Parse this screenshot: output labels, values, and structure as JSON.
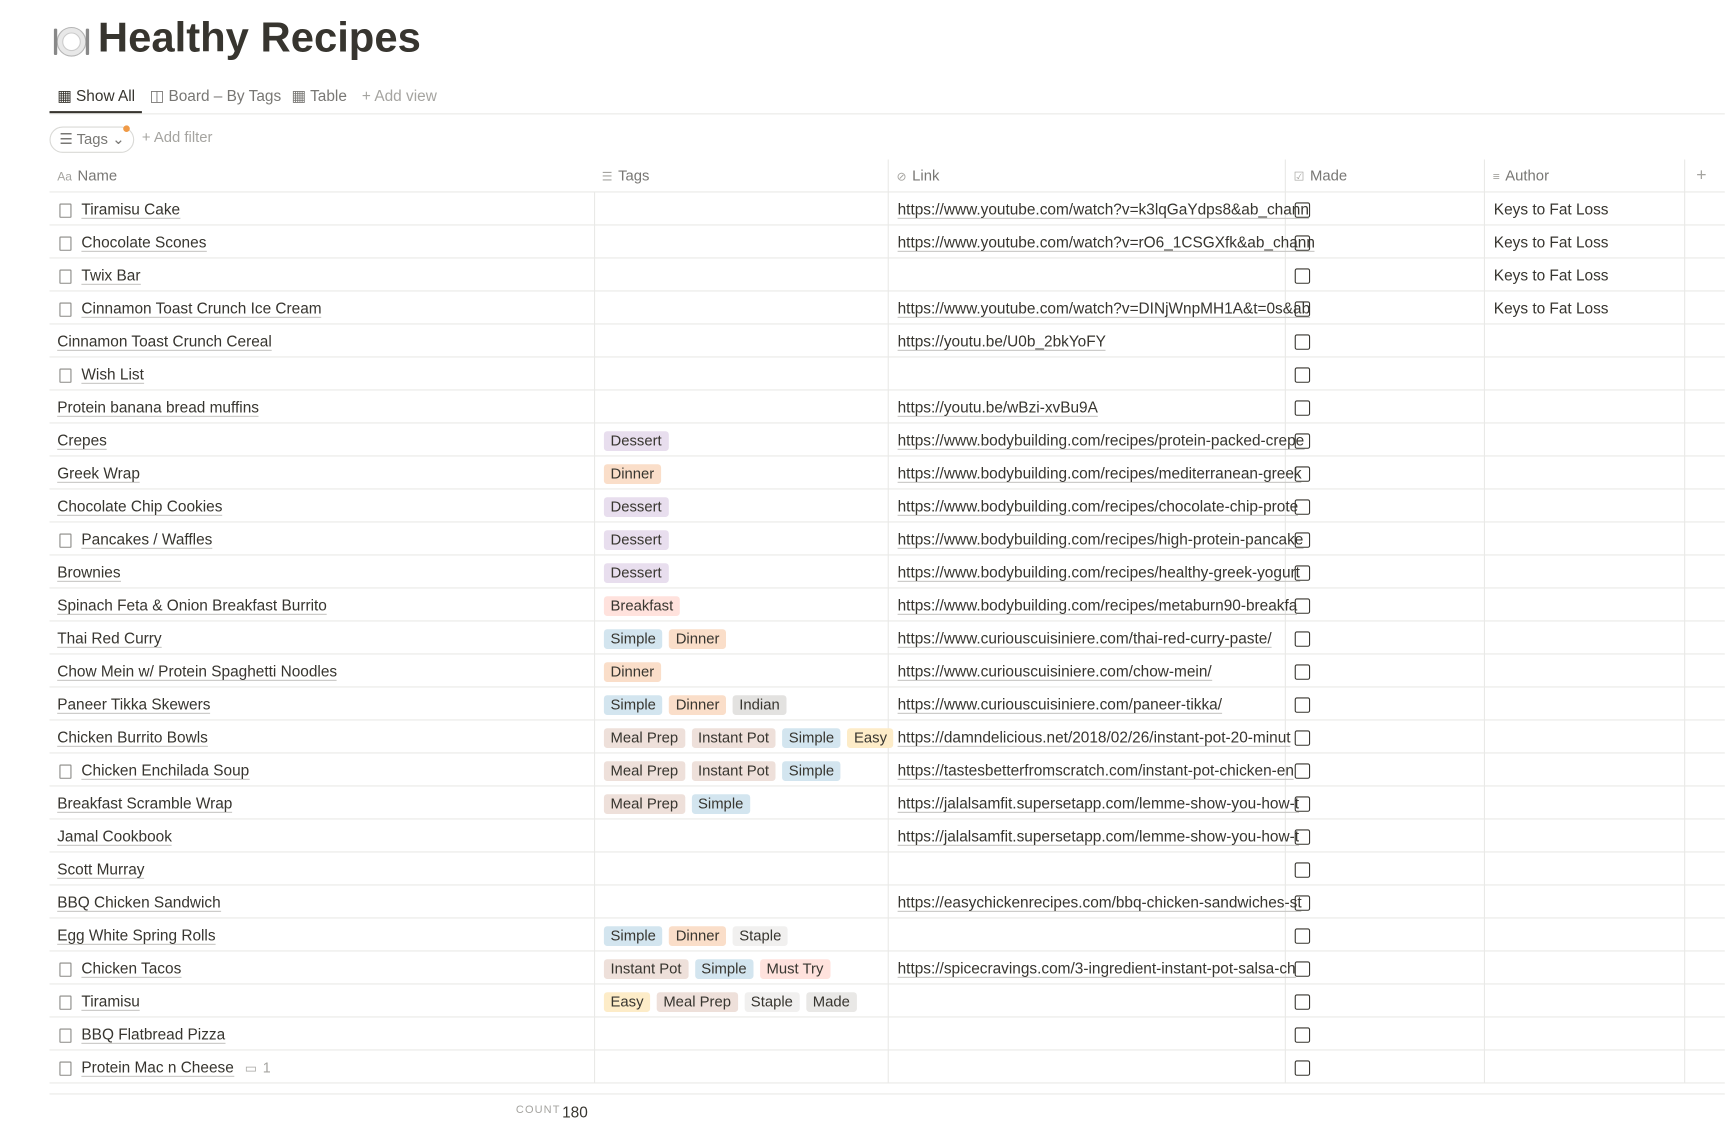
{
  "header": {
    "title": "Healthy Recipes",
    "views": [
      "Show All",
      "Board – By Tags",
      "Table"
    ],
    "add_view": "Add view",
    "filter": "Tags",
    "add_filter": "Add filter"
  },
  "table": {
    "columns": [
      "Name",
      "Tags",
      "Link",
      "Made",
      "Author"
    ],
    "rows": [
      {
        "name": "Tiramisu Cake",
        "page_icon": true,
        "tags": [],
        "link": "https://www.youtube.com/watch?v=k3lqGaYdps8&ab_chann",
        "made": false,
        "author": "Keys to Fat Loss"
      },
      {
        "name": "Chocolate Scones",
        "page_icon": true,
        "tags": [],
        "link": "https://www.youtube.com/watch?v=rO6_1CSGXfk&ab_chann",
        "made": false,
        "author": "Keys to Fat Loss"
      },
      {
        "name": "Twix Bar",
        "page_icon": true,
        "tags": [],
        "made": false,
        "author": "Keys to Fat Loss"
      },
      {
        "name": "Cinnamon Toast Crunch Ice Cream",
        "page_icon": true,
        "tags": [],
        "link": "https://www.youtube.com/watch?v=DINjWnpMH1A&t=0s&ab",
        "made": false,
        "author": "Keys to Fat Loss"
      },
      {
        "name": "Cinnamon Toast Crunch Cereal",
        "page_icon": false,
        "tags": [],
        "link": "https://youtu.be/U0b_2bkYoFY",
        "made": false
      },
      {
        "name": "Wish List",
        "page_icon": true,
        "tags": [],
        "made": false
      },
      {
        "name": "Protein banana bread muffins",
        "page_icon": false,
        "tags": [],
        "link": "https://youtu.be/wBzi-xvBu9A",
        "made": false
      },
      {
        "name": "Crepes",
        "page_icon": false,
        "tags": [
          {
            "name": "Dessert",
            "color": "#e8deee"
          }
        ],
        "link": "https://www.bodybuilding.com/recipes/protein-packed-crepe",
        "made": false
      },
      {
        "name": "Greek Wrap",
        "page_icon": false,
        "tags": [
          {
            "name": "Dinner",
            "color": "#fadec9"
          }
        ],
        "link": "https://www.bodybuilding.com/recipes/mediterranean-greek",
        "made": false
      },
      {
        "name": "Chocolate Chip Cookies",
        "page_icon": false,
        "tags": [
          {
            "name": "Dessert",
            "color": "#e8deee"
          }
        ],
        "link": "https://www.bodybuilding.com/recipes/chocolate-chip-prote",
        "made": false
      },
      {
        "name": "Pancakes / Waffles",
        "page_icon": true,
        "tags": [
          {
            "name": "Dessert",
            "color": "#e8deee"
          }
        ],
        "link": "https://www.bodybuilding.com/recipes/high-protein-pancake",
        "made": false
      },
      {
        "name": "Brownies",
        "page_icon": false,
        "tags": [
          {
            "name": "Dessert",
            "color": "#e8deee"
          }
        ],
        "link": "https://www.bodybuilding.com/recipes/healthy-greek-yogurt",
        "made": false
      },
      {
        "name": "Spinach Feta & Onion Breakfast Burrito",
        "page_icon": false,
        "tags": [
          {
            "name": "Breakfast",
            "color": "#ffe2dd"
          }
        ],
        "link": "https://www.bodybuilding.com/recipes/metaburn90-breakfa",
        "made": false
      },
      {
        "name": "Thai Red Curry",
        "page_icon": false,
        "tags": [
          {
            "name": "Simple",
            "color": "#d3e5ef"
          },
          {
            "name": "Dinner",
            "color": "#fadec9"
          }
        ],
        "link": "https://www.curiouscuisiniere.com/thai-red-curry-paste/",
        "made": false
      },
      {
        "name": "Chow Mein w/ Protein Spaghetti Noodles",
        "page_icon": false,
        "tags": [
          {
            "name": "Dinner",
            "color": "#fadec9"
          }
        ],
        "link": "https://www.curiouscuisiniere.com/chow-mein/",
        "made": false
      },
      {
        "name": "Paneer Tikka Skewers",
        "page_icon": false,
        "tags": [
          {
            "name": "Simple",
            "color": "#d3e5ef"
          },
          {
            "name": "Dinner",
            "color": "#fadec9"
          },
          {
            "name": "Indian",
            "color": "#e3e2e0"
          }
        ],
        "link": "https://www.curiouscuisiniere.com/paneer-tikka/",
        "made": false
      },
      {
        "name": "Chicken Burrito Bowls",
        "page_icon": false,
        "tags": [
          {
            "name": "Meal Prep",
            "color": "#eee0da"
          },
          {
            "name": "Instant Pot",
            "color": "#eee0da"
          },
          {
            "name": "Simple",
            "color": "#d3e5ef"
          },
          {
            "name": "Easy",
            "color": "#fdecc8"
          }
        ],
        "link": "https://damndelicious.net/2018/02/26/instant-pot-20-minut",
        "made": false
      },
      {
        "name": "Chicken Enchilada Soup",
        "page_icon": true,
        "tags": [
          {
            "name": "Meal Prep",
            "color": "#eee0da"
          },
          {
            "name": "Instant Pot",
            "color": "#eee0da"
          },
          {
            "name": "Simple",
            "color": "#d3e5ef"
          }
        ],
        "link": "https://tastesbetterfromscratch.com/instant-pot-chicken-en",
        "made": false
      },
      {
        "name": "Breakfast Scramble Wrap",
        "page_icon": false,
        "tags": [
          {
            "name": "Meal Prep",
            "color": "#eee0da"
          },
          {
            "name": "Simple",
            "color": "#d3e5ef"
          }
        ],
        "link": "https://jalalsamfit.supersetapp.com/lemme-show-you-how-t",
        "made": false
      },
      {
        "name": "Jamal Cookbook",
        "page_icon": false,
        "tags": [],
        "link": "https://jalalsamfit.supersetapp.com/lemme-show-you-how-t",
        "made": false
      },
      {
        "name": "Scott Murray",
        "page_icon": false,
        "tags": [],
        "made": false
      },
      {
        "name": "BBQ Chicken Sandwich",
        "page_icon": false,
        "tags": [],
        "link": "https://easychickenrecipes.com/bbq-chicken-sandwiches-st",
        "made": false
      },
      {
        "name": "Egg White Spring Rolls",
        "page_icon": false,
        "tags": [
          {
            "name": "Simple",
            "color": "#d3e5ef"
          },
          {
            "name": "Dinner",
            "color": "#fadec9"
          },
          {
            "name": "Staple",
            "color": "#f1f0ef"
          }
        ],
        "made": false
      },
      {
        "name": "Chicken Tacos",
        "page_icon": true,
        "tags": [
          {
            "name": "Instant Pot",
            "color": "#eee0da"
          },
          {
            "name": "Simple",
            "color": "#d3e5ef"
          },
          {
            "name": "Must Try",
            "color": "#ffe2dd"
          }
        ],
        "link": "https://spicecravings.com/3-ingredient-instant-pot-salsa-ch",
        "made": false
      },
      {
        "name": "Tiramisu",
        "page_icon": true,
        "tags": [
          {
            "name": "Easy",
            "color": "#fdecc8"
          },
          {
            "name": "Meal Prep",
            "color": "#eee0da"
          },
          {
            "name": "Staple",
            "color": "#f1f0ef"
          },
          {
            "name": "Made",
            "color": "#e9e8e6"
          }
        ],
        "made": false
      },
      {
        "name": "BBQ Flatbread Pizza",
        "page_icon": true,
        "tags": [],
        "made": false
      },
      {
        "name": "Protein Mac n Cheese",
        "page_icon": true,
        "tags": [],
        "made": false,
        "comments": 1
      }
    ]
  },
  "footer": {
    "label": "COUNT",
    "count": 180
  }
}
